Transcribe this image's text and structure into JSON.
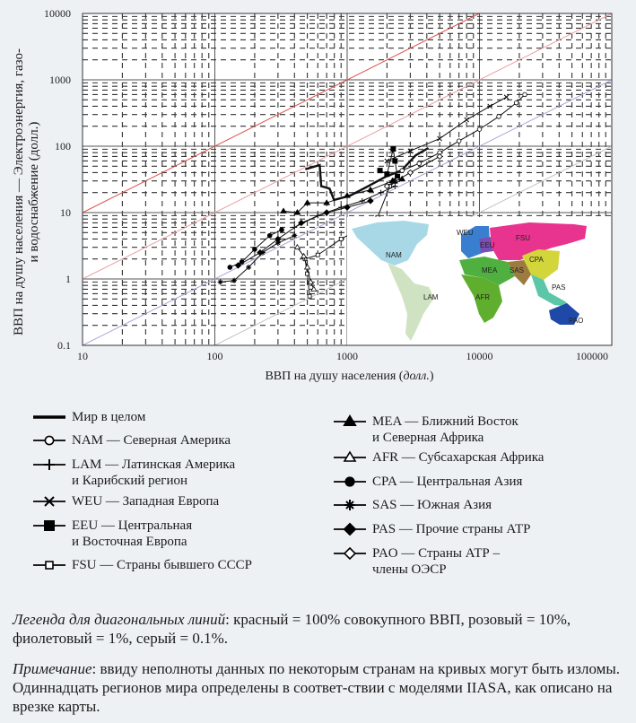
{
  "chart_data": {
    "type": "line",
    "xscale": "log",
    "yscale": "log",
    "xlabel_main": "ВВП на душу населения (",
    "xlabel_unit": "долл.",
    "xlabel_end": ")",
    "ylabel_line1": "ВВП на душу населения — Электроэнергия, газо-",
    "ylabel_line2": "и водоснабжение (долл.)",
    "xlim": [
      10,
      100000
    ],
    "ylim": [
      0.1,
      10000
    ],
    "x_ticks": [
      "10",
      "100",
      "1000",
      "10000",
      "100000"
    ],
    "y_ticks": [
      "10000",
      "1000",
      "100",
      "10",
      "1",
      "0.1"
    ],
    "grid": true,
    "diagonals": [
      {
        "name": "red",
        "share": 1.0,
        "color": "#d9534f"
      },
      {
        "name": "pink",
        "share": 0.1,
        "color": "#e8a0a8"
      },
      {
        "name": "violet",
        "share": 0.01,
        "color": "#b3a3d6"
      },
      {
        "name": "grey",
        "share": 0.001,
        "color": "#c4c4c4"
      }
    ],
    "series": [
      {
        "name": "Мир в целом",
        "marker": "none",
        "width": 2.4,
        "points": [
          [
            483,
            45
          ],
          [
            620,
            52
          ],
          [
            637,
            25
          ],
          [
            736,
            23
          ],
          [
            796,
            15.5
          ],
          [
            1054,
            18
          ],
          [
            1441,
            25
          ],
          [
            1971,
            35
          ],
          [
            2570,
            43
          ],
          [
            3300,
            73
          ],
          [
            4110,
            94
          ]
        ]
      },
      {
        "name": "NAM — Северная Америка",
        "marker": "open-circle",
        "width": 1,
        "points": [
          [
            2600,
            43
          ],
          [
            3500,
            55
          ],
          [
            5000,
            80
          ],
          [
            7000,
            120
          ],
          [
            10000,
            180
          ],
          [
            14000,
            280
          ],
          [
            19000,
            450
          ],
          [
            22000,
            600
          ]
        ]
      },
      {
        "name": "LAM — Латинская Америка и Карибский регион",
        "marker": "plus",
        "width": 1,
        "points": [
          [
            400,
            6
          ],
          [
            600,
            9
          ],
          [
            900,
            12
          ],
          [
            1300,
            15
          ],
          [
            1800,
            20
          ],
          [
            2300,
            25
          ]
        ]
      },
      {
        "name": "WEU — Западная Европа",
        "marker": "cross",
        "width": 1,
        "points": [
          [
            2000,
            60
          ],
          [
            3000,
            85
          ],
          [
            5000,
            130
          ],
          [
            8000,
            250
          ],
          [
            12000,
            400
          ],
          [
            16000,
            550
          ]
        ]
      },
      {
        "name": "EEU — Центральная и Восточная Европа",
        "marker": "filled-square",
        "width": 1,
        "points": [
          [
            1770,
            43
          ],
          [
            2000,
            38
          ],
          [
            2230,
            91
          ],
          [
            2300,
            60
          ],
          [
            2400,
            35
          ],
          [
            2300,
            30
          ]
        ]
      },
      {
        "name": "FSU — Страны бывшего СССР",
        "marker": "open-square",
        "width": 1,
        "points": [
          [
            2400,
            31
          ],
          [
            2100,
            25
          ],
          [
            1700,
            8.5
          ],
          [
            1400,
            6.5
          ],
          [
            900,
            4
          ],
          [
            600,
            2.3
          ],
          [
            480,
            2
          ],
          [
            500,
            1.2
          ],
          [
            520,
            0.55
          ]
        ]
      },
      {
        "name": "MEA — Ближний Восток и Северная Африка",
        "marker": "filled-triangle",
        "width": 1,
        "points": [
          [
            330,
            10.5
          ],
          [
            420,
            10
          ],
          [
            500,
            14
          ],
          [
            700,
            14
          ],
          [
            1000,
            18
          ],
          [
            1500,
            22
          ],
          [
            2200,
            30
          ],
          [
            2600,
            32
          ]
        ]
      },
      {
        "name": "AFR — Субсахарская Африка",
        "marker": "open-triangle",
        "width": 1,
        "points": [
          [
            420,
            3
          ],
          [
            470,
            2.2
          ],
          [
            500,
            1.5
          ],
          [
            530,
            0.9
          ],
          [
            560,
            0.7
          ]
        ]
      },
      {
        "name": "CPA — Центральная Азия",
        "marker": "filled-circle",
        "width": 1,
        "points": [
          [
            130,
            1.5
          ],
          [
            160,
            1.8
          ],
          [
            200,
            2.8
          ],
          [
            260,
            4.5
          ],
          [
            320,
            5.5
          ]
        ]
      },
      {
        "name": "SAS — Южная Азия",
        "marker": "star",
        "width": 1,
        "points": [
          [
            110,
            0.9
          ],
          [
            140,
            0.95
          ],
          [
            180,
            1.5
          ],
          [
            230,
            2.5
          ],
          [
            300,
            3.5
          ],
          [
            400,
            4.5
          ]
        ]
      },
      {
        "name": "PAS — Прочие страны АТР",
        "marker": "filled-diamond",
        "width": 1,
        "points": [
          [
            150,
            1.6
          ],
          [
            220,
            2.5
          ],
          [
            300,
            4
          ],
          [
            450,
            7
          ],
          [
            700,
            10
          ],
          [
            1000,
            12
          ],
          [
            1500,
            15
          ]
        ]
      },
      {
        "name": "PAO — Страны АТР – члены ОЭСР",
        "marker": "open-diamond",
        "width": 1,
        "points": [
          [
            2000,
            25
          ],
          [
            3000,
            40
          ],
          [
            5000,
            70
          ]
        ]
      }
    ]
  },
  "map": {
    "labels": {
      "nam": "NAM",
      "lam": "LAM",
      "weu": "WEU",
      "eeu": "EEU",
      "fsu": "FSU",
      "mea": "MEA",
      "afr": "AFR",
      "cpa": "CPA",
      "sas": "SAS",
      "pas": "PAS",
      "pao": "PAO"
    }
  },
  "legend": {
    "left": [
      {
        "line1": "Мир в целом",
        "line2": ""
      },
      {
        "line1": "NAM — Северная Америка",
        "line2": ""
      },
      {
        "line1": "LAM — Латинская Америка",
        "line2": "и Карибский регион"
      },
      {
        "line1": "WEU — Западная Европа",
        "line2": ""
      },
      {
        "line1": "EEU — Центральная",
        "line2": "и Восточная Европа"
      },
      {
        "line1": "FSU — Страны бывшего СССР",
        "line2": ""
      }
    ],
    "right": [
      {
        "line1": "MEA — Ближний Восток",
        "line2": "и Северная Африка"
      },
      {
        "line1": "AFR — Субсахарская Африка",
        "line2": ""
      },
      {
        "line1": "CPA — Центральная Азия",
        "line2": ""
      },
      {
        "line1": "SAS — Южная Азия",
        "line2": ""
      },
      {
        "line1": "PAS — Прочие страны АТР",
        "line2": ""
      },
      {
        "line1": "PAO — Страны АТР –",
        "line2": "члены ОЭСР"
      }
    ]
  },
  "notes": {
    "diag_title": "Легенда для диагональных линий",
    "diag_text": ": красный = 100% совокупного ВВП, розовый = 10%, фиолетовый = 1%, серый = 0.1%.",
    "note_title": "Примечание",
    "note_text": ": ввиду неполноты данных по некоторым странам на кривых могут быть изломы. Одиннадцать регионов мира определены в соответ-ствии с моделями IIASA, как описано на врезке карты."
  }
}
